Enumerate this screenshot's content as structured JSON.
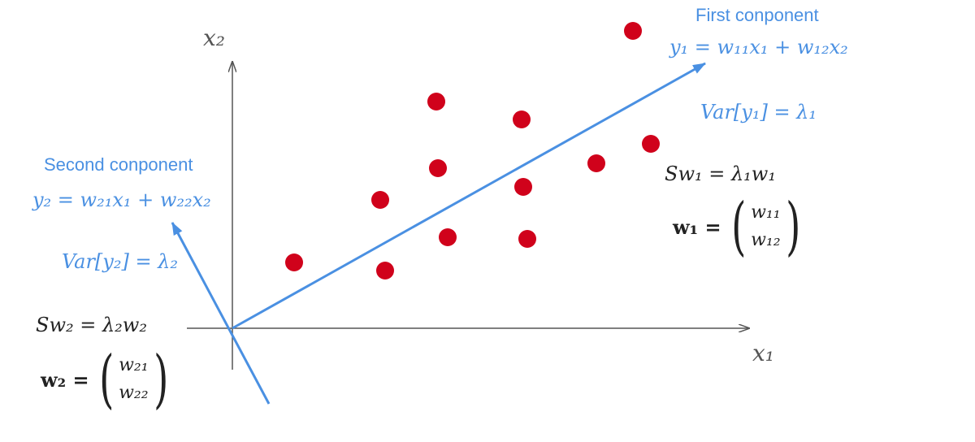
{
  "axes": {
    "x_label": "x₁",
    "y_label": "x₂"
  },
  "components": {
    "first": {
      "title": "First conponent",
      "equation": "y₁ = w₁₁x₁ + w₁₂x₂",
      "variance": "Var[y₁] = λ₁",
      "eigen_eq": "Sw₁ = λ₁w₁",
      "vector_lhs": "w₁ =",
      "vector": [
        "w₁₁",
        "w₁₂"
      ]
    },
    "second": {
      "title": "Second conponent",
      "equation": "y₂ = w₂₁x₁ + w₂₂x₂",
      "variance": "Var[y₂] = λ₂",
      "eigen_eq": "Sw₂ = λ₂w₂",
      "vector_lhs": "w₂ =",
      "vector": [
        "w₂₁",
        "w₂₂"
      ]
    }
  },
  "colors": {
    "points": "#d0021b",
    "component_lines": "#4a90e2",
    "axes": "#555555"
  }
}
